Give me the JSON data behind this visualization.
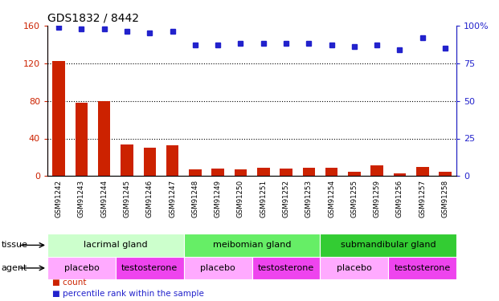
{
  "title": "GDS1832 / 8442",
  "samples": [
    "GSM91242",
    "GSM91243",
    "GSM91244",
    "GSM91245",
    "GSM91246",
    "GSM91247",
    "GSM91248",
    "GSM91249",
    "GSM91250",
    "GSM91251",
    "GSM91252",
    "GSM91253",
    "GSM91254",
    "GSM91255",
    "GSM91259",
    "GSM91256",
    "GSM91257",
    "GSM91258"
  ],
  "counts": [
    122,
    78,
    80,
    34,
    30,
    33,
    7,
    8,
    7,
    9,
    8,
    9,
    9,
    5,
    11,
    3,
    10,
    5
  ],
  "percentile_pct": [
    99,
    98,
    98,
    96,
    95,
    96,
    87,
    87,
    88,
    88,
    88,
    88,
    87,
    86,
    87,
    84,
    92,
    85
  ],
  "bar_color": "#cc2200",
  "dot_color": "#2222cc",
  "ylim_left": [
    0,
    160
  ],
  "ylim_right": [
    0,
    100
  ],
  "yticks_left": [
    0,
    40,
    80,
    120,
    160
  ],
  "ytick_labels_left": [
    "0",
    "40",
    "80",
    "120",
    "160"
  ],
  "yticks_right": [
    0,
    25,
    50,
    75,
    100
  ],
  "ytick_labels_right": [
    "0",
    "25",
    "50",
    "75",
    "100%"
  ],
  "tissue_groups": [
    {
      "label": "lacrimal gland",
      "start": 0,
      "end": 6,
      "color": "#ccffcc"
    },
    {
      "label": "meibomian gland",
      "start": 6,
      "end": 12,
      "color": "#66ee66"
    },
    {
      "label": "submandibular gland",
      "start": 12,
      "end": 18,
      "color": "#33cc33"
    }
  ],
  "agent_groups": [
    {
      "label": "placebo",
      "start": 0,
      "end": 3,
      "color": "#ffaaff"
    },
    {
      "label": "testosterone",
      "start": 3,
      "end": 6,
      "color": "#ee44ee"
    },
    {
      "label": "placebo",
      "start": 6,
      "end": 9,
      "color": "#ffaaff"
    },
    {
      "label": "testosterone",
      "start": 9,
      "end": 12,
      "color": "#ee44ee"
    },
    {
      "label": "placebo",
      "start": 12,
      "end": 15,
      "color": "#ffaaff"
    },
    {
      "label": "testosterone",
      "start": 15,
      "end": 18,
      "color": "#ee44ee"
    }
  ],
  "tissue_row_label": "tissue",
  "agent_row_label": "agent",
  "legend_count_label": "count",
  "legend_percentile_label": "percentile rank within the sample",
  "background_color": "#ffffff",
  "tick_label_bg": "#c8c8c8"
}
